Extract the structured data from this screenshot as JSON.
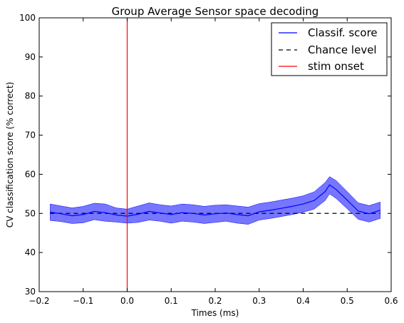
{
  "chart_data": {
    "type": "line",
    "title": "Group Average Sensor space decoding",
    "xlabel": "Times (ms)",
    "ylabel": "CV classification score (% correct)",
    "xlim": [
      -0.2,
      0.6
    ],
    "ylim": [
      30,
      100
    ],
    "xticks": [
      "−0.2",
      "−0.1",
      "0.0",
      "0.1",
      "0.2",
      "0.3",
      "0.4",
      "0.5",
      "0.6"
    ],
    "yticks": [
      "30",
      "40",
      "50",
      "60",
      "70",
      "80",
      "90",
      "100"
    ],
    "legend_position": "top-right",
    "grid": false,
    "colors": {
      "score": "#0000ff",
      "band": "#6f6fff",
      "chance": "#000000",
      "onset": "#ff0000"
    },
    "series": [
      {
        "name": "Classif. score",
        "kind": "line-with-band",
        "x": [
          -0.175,
          -0.15,
          -0.125,
          -0.1,
          -0.075,
          -0.05,
          -0.025,
          0.0,
          0.025,
          0.05,
          0.075,
          0.1,
          0.125,
          0.15,
          0.175,
          0.2,
          0.225,
          0.25,
          0.275,
          0.3,
          0.325,
          0.35,
          0.375,
          0.4,
          0.425,
          0.45,
          0.46,
          0.475,
          0.5,
          0.525,
          0.55,
          0.575
        ],
        "y": [
          50.3,
          49.9,
          49.4,
          49.7,
          50.5,
          50.2,
          49.6,
          49.3,
          49.8,
          50.5,
          50.1,
          49.7,
          50.2,
          50.0,
          49.6,
          49.9,
          50.1,
          49.7,
          49.4,
          50.4,
          50.8,
          51.3,
          51.8,
          52.4,
          53.3,
          55.6,
          57.3,
          56.1,
          53.4,
          50.6,
          49.9,
          50.8
        ],
        "lower": [
          48.2,
          47.9,
          47.4,
          47.6,
          48.4,
          48.0,
          47.8,
          47.5,
          47.7,
          48.3,
          48.0,
          47.5,
          48.0,
          47.8,
          47.4,
          47.7,
          48.0,
          47.5,
          47.2,
          48.3,
          48.7,
          49.2,
          49.7,
          50.3,
          51.1,
          53.3,
          55.0,
          53.8,
          51.2,
          48.5,
          47.8,
          48.7
        ],
        "upper": [
          52.4,
          51.9,
          51.4,
          51.8,
          52.6,
          52.4,
          51.4,
          51.1,
          51.9,
          52.7,
          52.2,
          51.9,
          52.4,
          52.2,
          51.8,
          52.1,
          52.2,
          51.9,
          51.6,
          52.5,
          52.9,
          53.4,
          53.9,
          54.5,
          55.5,
          57.9,
          59.4,
          58.4,
          55.6,
          52.7,
          52.0,
          52.9
        ]
      },
      {
        "name": "Chance level",
        "kind": "hline",
        "y": 50,
        "x_range": [
          -0.175,
          0.575
        ]
      },
      {
        "name": "stim onset",
        "kind": "vline",
        "x": 0.0
      }
    ]
  }
}
